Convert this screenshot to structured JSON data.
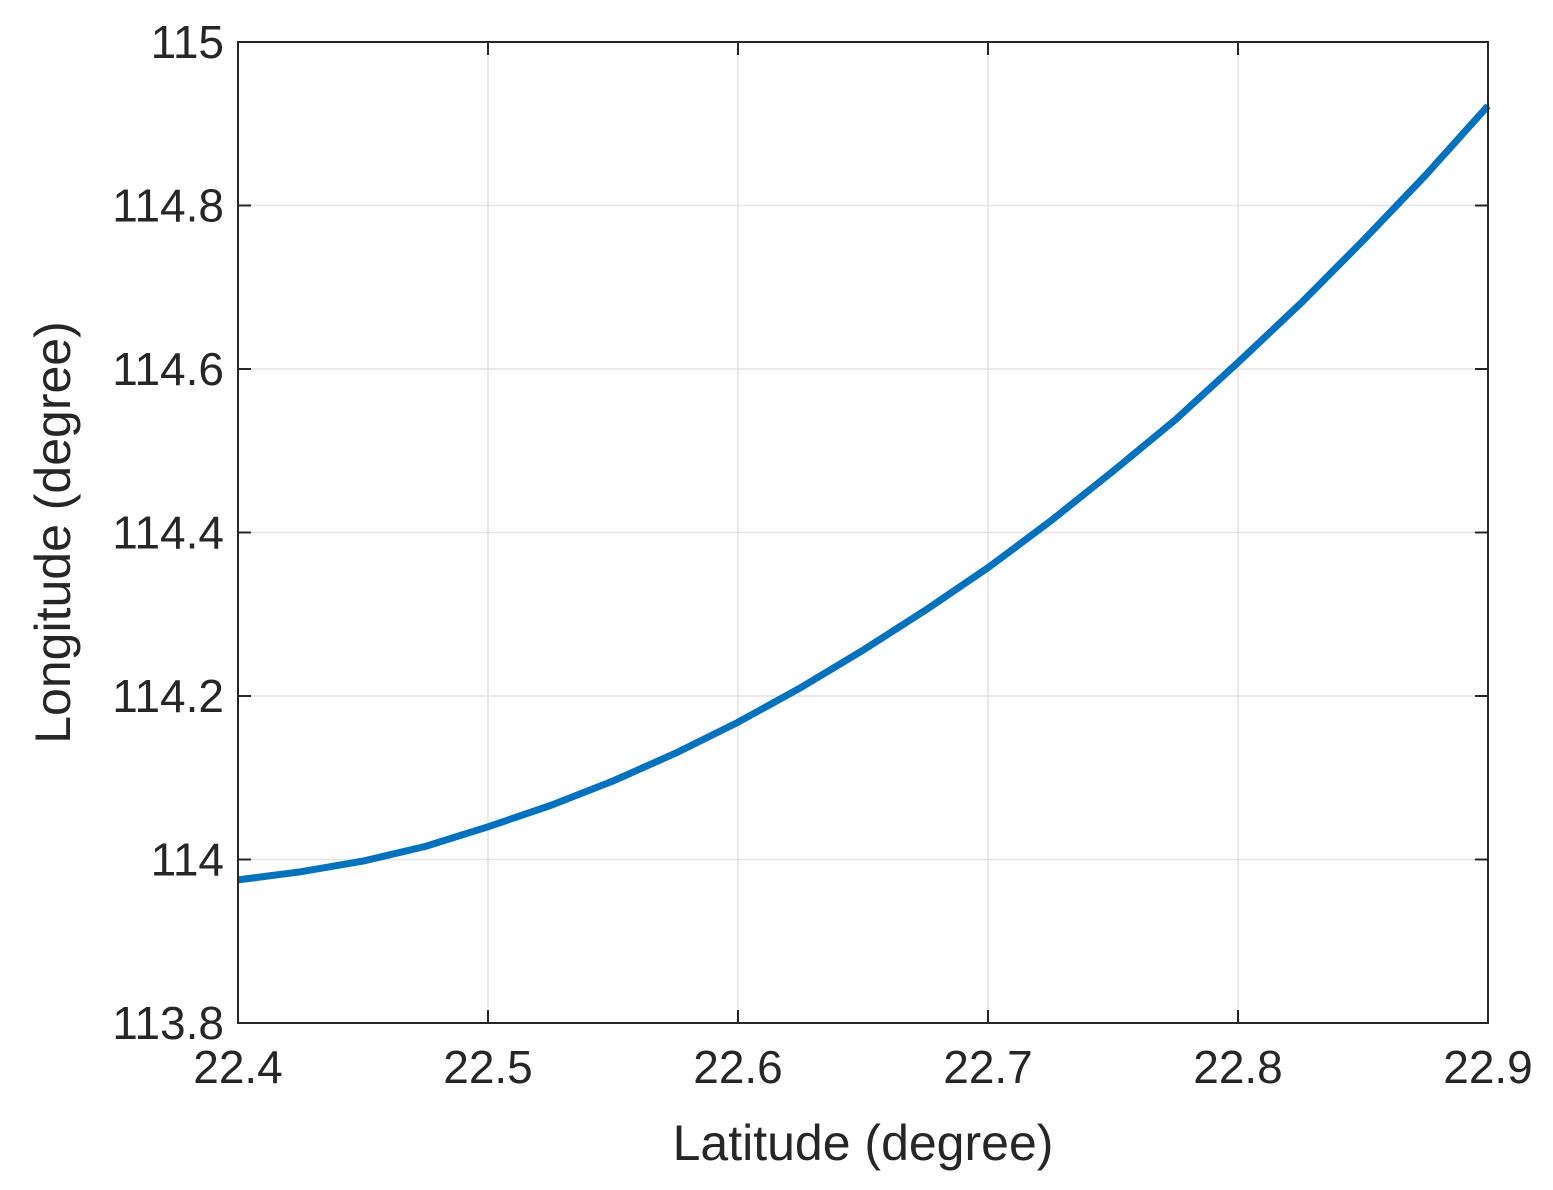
{
  "chart_data": {
    "type": "line",
    "title": "",
    "xlabel": "Latitude (degree)",
    "ylabel": "Longitude (degree)",
    "xlim": [
      22.4,
      22.9
    ],
    "ylim": [
      113.8,
      115
    ],
    "xticks": [
      22.4,
      22.5,
      22.6,
      22.7,
      22.8,
      22.9
    ],
    "xtick_labels": [
      "22.4",
      "22.5",
      "22.6",
      "22.7",
      "22.8",
      "22.9"
    ],
    "yticks": [
      113.8,
      114,
      114.2,
      114.4,
      114.6,
      114.8,
      115
    ],
    "ytick_labels": [
      "113.8",
      "114",
      "114.2",
      "114.4",
      "114.6",
      "114.8",
      "115"
    ],
    "grid": true,
    "legend": "none",
    "series": [
      {
        "color": "#0072BD",
        "x": [
          22.4,
          22.425,
          22.45,
          22.475,
          22.5,
          22.525,
          22.55,
          22.575,
          22.6,
          22.625,
          22.65,
          22.675,
          22.7,
          22.725,
          22.75,
          22.775,
          22.8,
          22.825,
          22.85,
          22.875,
          22.9
        ],
        "y": [
          113.975,
          113.985,
          113.998,
          114.016,
          114.04,
          114.066,
          114.096,
          114.13,
          114.168,
          114.21,
          114.256,
          114.305,
          114.357,
          114.414,
          114.475,
          114.538,
          114.608,
          114.68,
          114.757,
          114.837,
          114.922
        ]
      }
    ]
  }
}
